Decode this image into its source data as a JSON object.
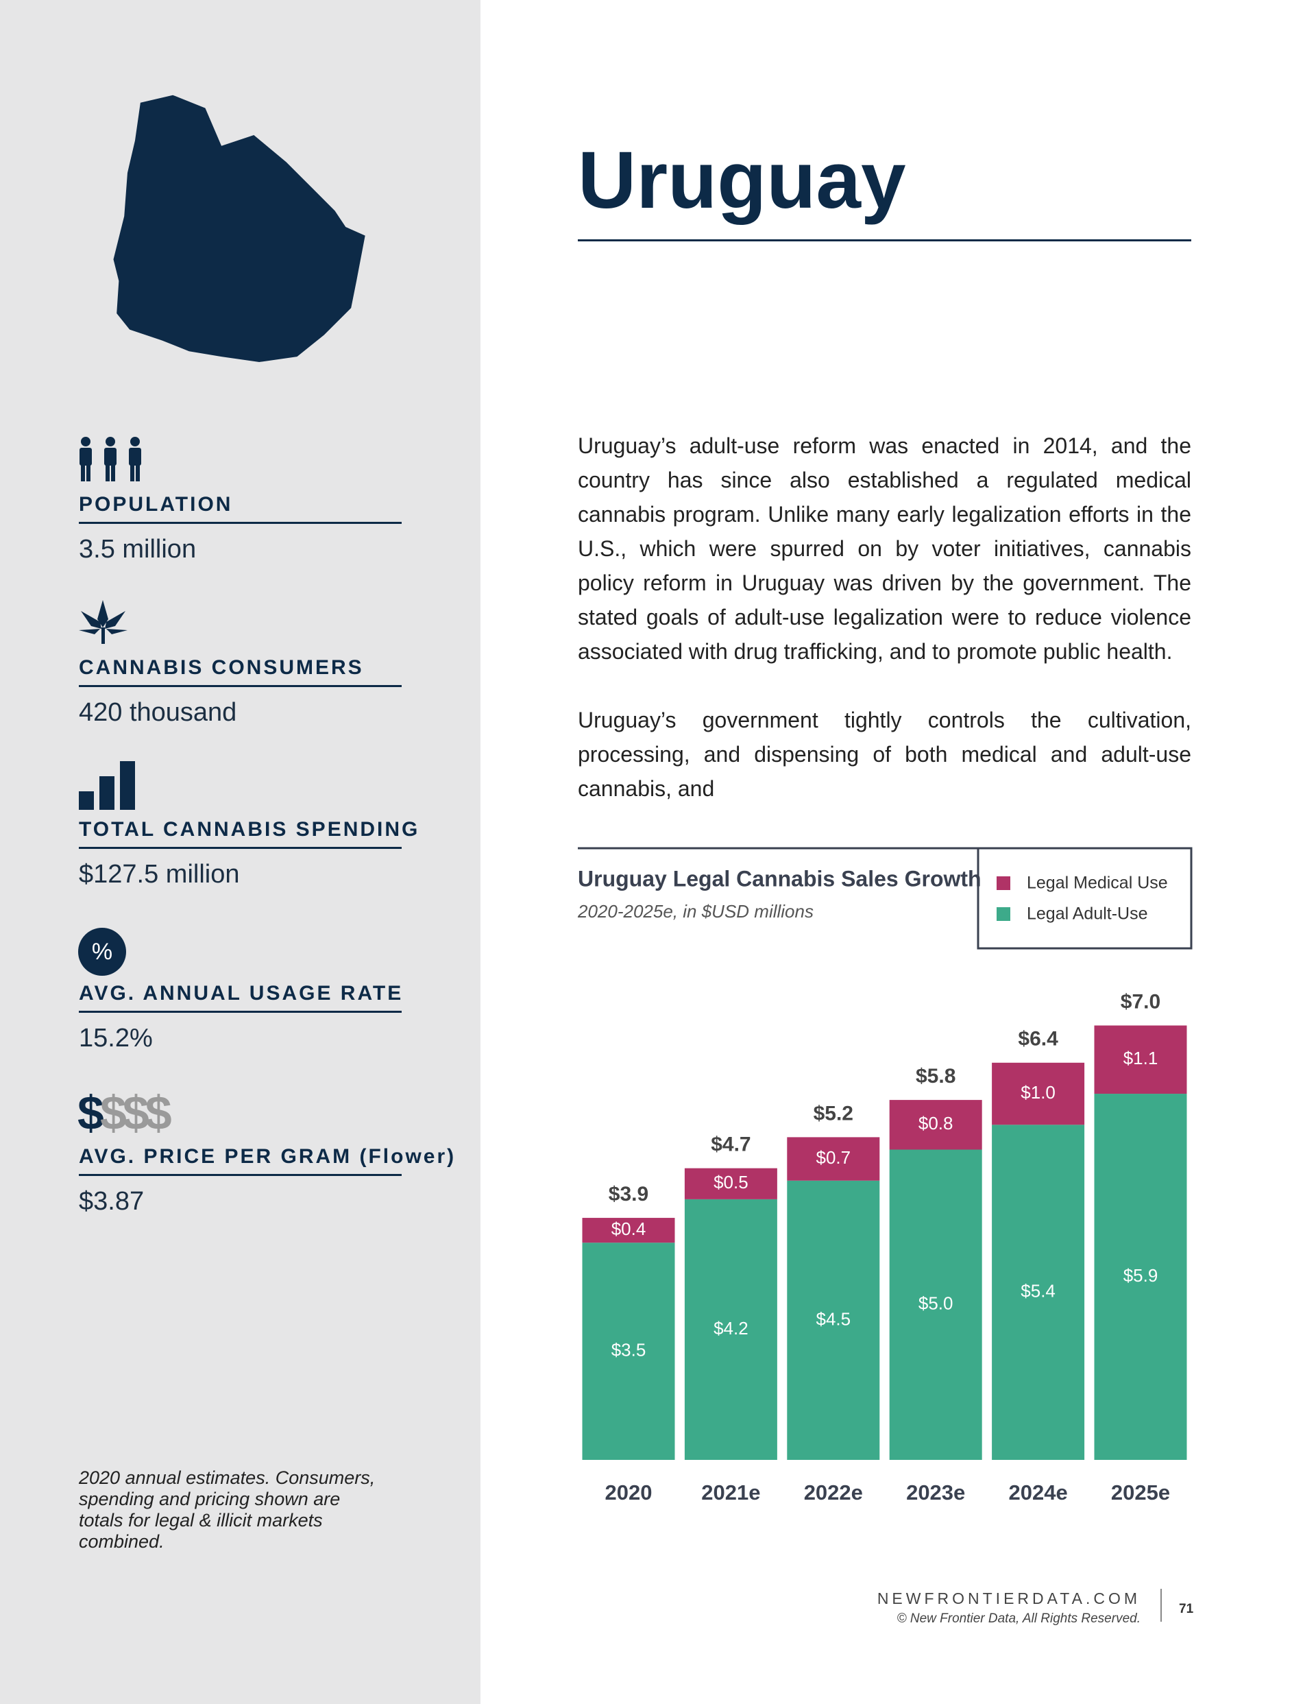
{
  "sidebar": {
    "stats": [
      {
        "label": "POPULATION",
        "value": "3.5 million"
      },
      {
        "label": "CANNABIS CONSUMERS",
        "value": "420 thousand"
      },
      {
        "label": "TOTAL CANNABIS SPENDING",
        "value": "$127.5 million"
      },
      {
        "label": "AVG. ANNUAL USAGE RATE",
        "value": "15.2%"
      },
      {
        "label": "AVG. PRICE PER GRAM (Flower)",
        "value": "$3.87"
      }
    ],
    "usage_icon": "%",
    "price_icon": [
      "$",
      "$$$"
    ],
    "footnote": "2020 annual estimates. Consumers, spending and pricing shown are totals for legal & illicit markets combined."
  },
  "header": {
    "title": "Uruguay"
  },
  "body": {
    "paragraphs": [
      "Uruguay’s adult-use reform was enacted in 2014, and the country has since also established a regulated medical cannabis program. Unlike many early legalization efforts in the U.S., which were spurred on by voter initiatives, cannabis policy reform in Uruguay was driven by the government. The stated goals of adult-use legalization were to reduce violence associated with drug trafficking, and to promote public health.",
      "Uruguay’s government tightly controls the cultivation, processing, and dispensing of both medical and adult-use cannabis, and"
    ]
  },
  "chart_data": {
    "type": "stacked_bar",
    "title": "Uruguay Legal Cannabis Sales Growth",
    "subtitle": "2020-2025e, in $USD millions",
    "categories": [
      "2020",
      "2021e",
      "2022e",
      "2023e",
      "2024e",
      "2025e"
    ],
    "series": [
      {
        "name": "Legal Medical Use",
        "color": "#b03366",
        "values": [
          0.4,
          0.5,
          0.7,
          0.8,
          1.0,
          1.1
        ],
        "value_labels": [
          "$0.4",
          "$0.5",
          "$0.7",
          "$0.8",
          "$1.0",
          "$1.1"
        ]
      },
      {
        "name": "Legal Adult-Use",
        "color": "#3daa8a",
        "values": [
          3.5,
          4.2,
          4.5,
          5.0,
          5.4,
          5.9
        ],
        "value_labels": [
          "$3.5",
          "$4.2",
          "$4.5",
          "$5.0",
          "$5.4",
          "$5.9"
        ]
      }
    ],
    "totals": [
      3.9,
      4.7,
      5.2,
      5.8,
      6.4,
      7.0
    ],
    "total_labels": [
      "$3.9",
      "$4.7",
      "$5.2",
      "$5.8",
      "$6.4",
      "$7.0"
    ]
  },
  "footer": {
    "site": "NEWFRONTIERDATA.COM",
    "copyright": "© New Frontier Data, All Rights Reserved.",
    "page": "71"
  }
}
